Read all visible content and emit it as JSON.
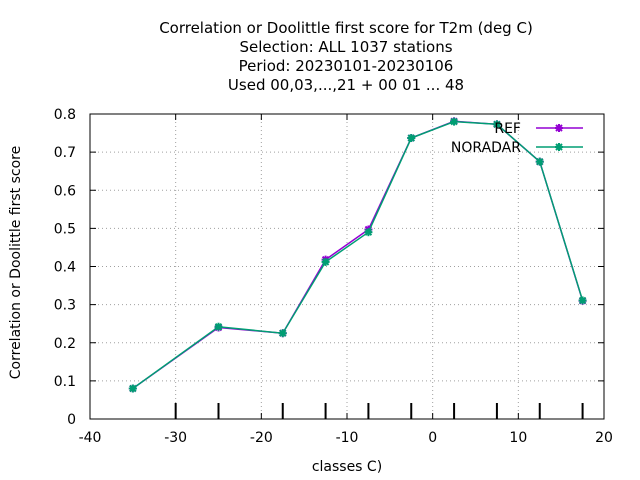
{
  "chart_data": {
    "type": "line",
    "title_lines": [
      "Correlation or Doolittle first score  for T2m (deg C)",
      "Selection: ALL   1037 stations",
      "Period: 20230101-20230106",
      "Used  00,03,...,21  + 00 01 ... 48"
    ],
    "xlabel": "classes C)",
    "ylabel": "Correlation or Doolittle first score",
    "xlim": [
      -40,
      20
    ],
    "ylim": [
      0,
      0.8
    ],
    "xticks": [
      -40,
      -30,
      -20,
      -10,
      0,
      10,
      20
    ],
    "yticks": [
      0,
      0.1,
      0.2,
      0.3,
      0.4,
      0.5,
      0.6,
      0.7,
      0.8
    ],
    "xtick_labels": [
      "-40",
      "-30",
      "-20",
      "-10",
      "0",
      "10",
      "20"
    ],
    "ytick_labels": [
      "0",
      "0.1",
      "0.2",
      "0.3",
      "0.4",
      "0.5",
      "0.6",
      "0.7",
      "0.8"
    ],
    "grid": true,
    "legend_position": "top-right",
    "series": [
      {
        "name": "REF",
        "color": "#9400d3",
        "x": [
          -35,
          -25,
          -17.5,
          -12.5,
          -7.5,
          -2.5,
          2.5,
          7.5,
          12.5,
          17.5
        ],
        "y": [
          0.08,
          0.24,
          0.225,
          0.418,
          0.497,
          0.737,
          0.781,
          0.773,
          0.675,
          0.31
        ]
      },
      {
        "name": "NORADAR",
        "color": "#009e73",
        "x": [
          -35,
          -25,
          -17.5,
          -12.5,
          -7.5,
          -2.5,
          2.5,
          7.5,
          12.5,
          17.5
        ],
        "y": [
          0.08,
          0.242,
          0.225,
          0.412,
          0.49,
          0.737,
          0.78,
          0.773,
          0.675,
          0.311
        ]
      }
    ],
    "count_markers_x": [
      -30,
      -25,
      -17.5,
      -12.5,
      -7.5,
      -2.5,
      2.5,
      7.5,
      12.5,
      17.5
    ]
  }
}
